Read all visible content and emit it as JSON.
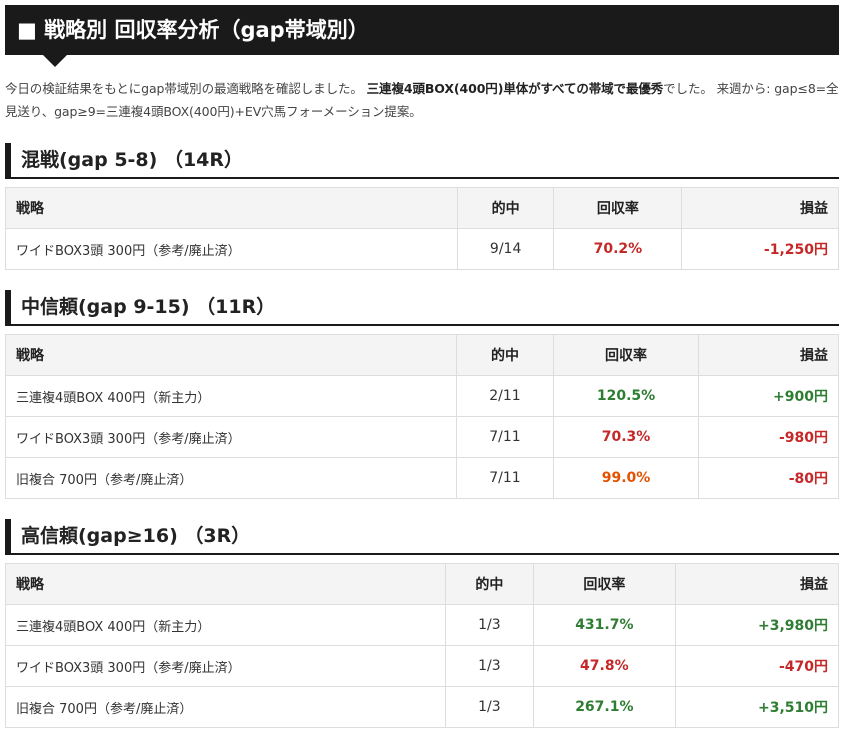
{
  "header": {
    "title": "■ 戦略別 回収率分析（gap帯域別）"
  },
  "intro": [
    {
      "text": "今日の検証結果をもとにgap帯域別の最適戦略を確認しました。 ",
      "bold": false
    },
    {
      "text": "三連複4頭BOX(400円)単体がすべての帯域で最優秀",
      "bold": true
    },
    {
      "text": "でした。 来週から: gap≤8=全見送り、gap≥9=三連複4頭BOX(400円)+EV穴馬フォーメーション提案。",
      "bold": false
    }
  ],
  "sections": [
    {
      "heading": "混戦(gap 5-8) （14R）",
      "columns": [
        "戦略",
        "的中",
        "回収率",
        "損益"
      ],
      "rows": [
        {
          "cells": [
            "ワイドBOX3頭 300円（参考/廃止済）",
            "9/14",
            "70.2%",
            "-1,250円"
          ],
          "rate_color": "#c62828",
          "profit_color": "#c62828"
        }
      ]
    },
    {
      "heading": "中信頼(gap 9-15) （11R）",
      "columns": [
        "戦略",
        "的中",
        "回収率",
        "損益"
      ],
      "rows": [
        {
          "cells": [
            "三連複4頭BOX 400円（新主力）",
            "2/11",
            "120.5%",
            "+900円"
          ],
          "rate_color": "#2e7d32",
          "profit_color": "#2e7d32"
        },
        {
          "cells": [
            "ワイドBOX3頭 300円（参考/廃止済）",
            "7/11",
            "70.3%",
            "-980円"
          ],
          "rate_color": "#c62828",
          "profit_color": "#c62828"
        },
        {
          "cells": [
            "旧複合 700円（参考/廃止済）",
            "7/11",
            "99.0%",
            "-80円"
          ],
          "rate_color": "#e65100",
          "profit_color": "#c62828"
        }
      ]
    },
    {
      "heading": "高信頼(gap≥16) （3R）",
      "columns": [
        "戦略",
        "的中",
        "回収率",
        "損益"
      ],
      "rows": [
        {
          "cells": [
            "三連複4頭BOX 400円（新主力）",
            "1/3",
            "431.7%",
            "+3,980円"
          ],
          "rate_color": "#2e7d32",
          "profit_color": "#2e7d32"
        },
        {
          "cells": [
            "ワイドBOX3頭 300円（参考/廃止済）",
            "1/3",
            "47.8%",
            "-470円"
          ],
          "rate_color": "#c62828",
          "profit_color": "#c62828"
        },
        {
          "cells": [
            "旧複合 700円（参考/廃止済）",
            "1/3",
            "267.1%",
            "+3,510円"
          ],
          "rate_color": "#2e7d32",
          "profit_color": "#2e7d32"
        }
      ]
    }
  ]
}
